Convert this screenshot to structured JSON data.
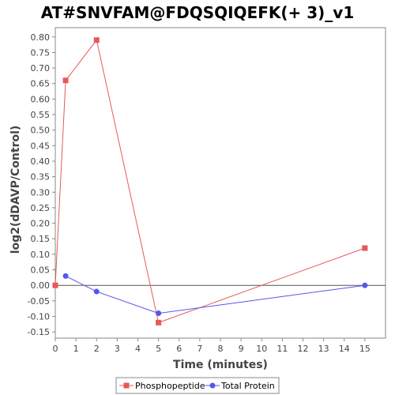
{
  "chart_data": {
    "type": "line",
    "title": "AT#SNVFAM@FDQSQIQEFK(+ 3)_v1",
    "xlabel": "Time (minutes)",
    "ylabel": "log2(dDAVP/Control)",
    "xlim": [
      0,
      16
    ],
    "ylim": [
      -0.17,
      0.83
    ],
    "xticks": [
      0,
      1,
      2,
      3,
      4,
      5,
      6,
      7,
      8,
      9,
      10,
      11,
      12,
      13,
      14,
      15
    ],
    "yticks": [
      -0.15,
      -0.1,
      -0.05,
      0.0,
      0.05,
      0.1,
      0.15,
      0.2,
      0.25,
      0.3,
      0.35,
      0.4,
      0.45,
      0.5,
      0.55,
      0.6,
      0.65,
      0.7,
      0.75,
      0.8
    ],
    "zero_line": true,
    "grid": false,
    "legend_position": "bottom",
    "series": [
      {
        "name": "Phosphopeptide",
        "color": "#e8585a",
        "marker": "square",
        "x": [
          0,
          0.5,
          2,
          5,
          15
        ],
        "y": [
          0.0,
          0.66,
          0.79,
          -0.12,
          0.12
        ]
      },
      {
        "name": "Total Protein",
        "color": "#5555ee",
        "marker": "circle",
        "x": [
          0.5,
          2,
          5,
          15
        ],
        "y": [
          0.03,
          -0.02,
          -0.09,
          0.0
        ]
      }
    ]
  }
}
